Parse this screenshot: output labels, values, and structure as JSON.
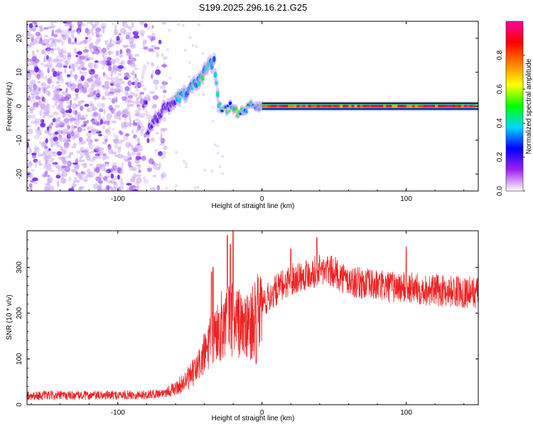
{
  "title": "S199.2025.296.16.21.G25",
  "chart_data": [
    {
      "type": "heatmap",
      "xlabel": "Height of straight line (km)",
      "ylabel": "Frequency (Hz)",
      "xlim": [
        -163,
        150
      ],
      "ylim": [
        -25,
        25
      ],
      "xticks": [
        -100,
        0,
        100
      ],
      "yticks": [
        -20,
        -10,
        0,
        10,
        20
      ],
      "grid": false,
      "colorbar": {
        "label": "Normalized spectral amplitude",
        "ticks": [
          0.0,
          0.2,
          0.4,
          0.6,
          0.8
        ],
        "range": [
          0,
          1
        ],
        "stops": [
          "#ffffff",
          "#a020f0",
          "#0000ff",
          "#00d8ff",
          "#00ff00",
          "#ffff00",
          "#ff8000",
          "#ff0000",
          "#ff00a0"
        ]
      },
      "features": {
        "noise_region_x": [
          -163,
          -67
        ],
        "signal_ridge": {
          "x": [
            -80,
            -74,
            -68,
            -62,
            -56,
            -50,
            -44,
            -40,
            -36,
            -33,
            -30,
            -25,
            -20,
            -17,
            -14,
            -10,
            -5,
            0,
            20,
            40,
            60,
            80,
            100,
            120,
            150
          ],
          "freq": [
            -8,
            -4,
            -1,
            1,
            3,
            5,
            7,
            10,
            12,
            13,
            0,
            -1,
            0,
            -3,
            -2,
            0,
            0,
            0,
            0,
            0,
            0,
            0,
            0,
            0,
            0
          ]
        },
        "steady_line_x": [
          0,
          150
        ],
        "steady_line_freq": 0
      }
    },
    {
      "type": "line",
      "xlabel": "Height of straight line (km)",
      "ylabel": "SNR (10 * v/v)",
      "xlim": [
        -163,
        150
      ],
      "ylim": [
        0,
        380
      ],
      "xticks": [
        -100,
        0,
        100
      ],
      "yticks": [
        0,
        100,
        200,
        300
      ],
      "grid": false,
      "series": [
        {
          "name": "SNR",
          "color": "#ee2222",
          "envelope_x": [
            -163,
            -120,
            -80,
            -70,
            -60,
            -50,
            -45,
            -40,
            -35,
            -30,
            -25,
            -20,
            -15,
            -10,
            -5,
            0,
            10,
            20,
            30,
            40,
            50,
            60,
            80,
            100,
            120,
            150
          ],
          "envelope_y": [
            20,
            20,
            22,
            25,
            35,
            60,
            80,
            110,
            140,
            165,
            185,
            190,
            175,
            165,
            190,
            220,
            250,
            275,
            285,
            295,
            290,
            270,
            260,
            255,
            250,
            245
          ],
          "spikes": [
            {
              "x": -35,
              "y": 290
            },
            {
              "x": -34,
              "y": 300
            },
            {
              "x": -24,
              "y": 370
            },
            {
              "x": -22,
              "y": 350
            },
            {
              "x": -20,
              "y": 380
            },
            {
              "x": -4,
              "y": 90
            },
            {
              "x": 20,
              "y": 340
            },
            {
              "x": 38,
              "y": 365
            },
            {
              "x": 100,
              "y": 345
            }
          ]
        }
      ]
    }
  ]
}
